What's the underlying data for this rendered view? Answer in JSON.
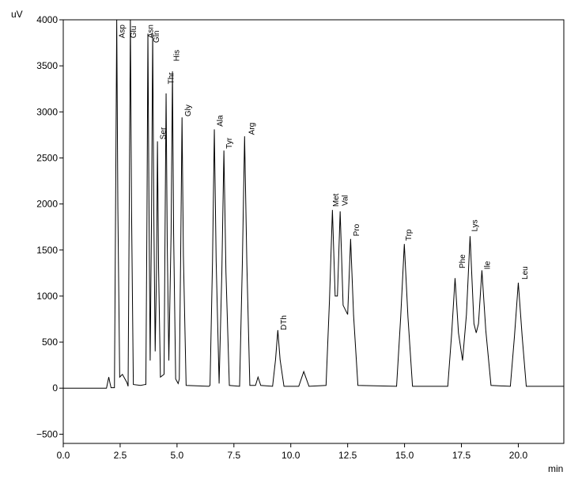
{
  "chart_data": {
    "type": "line",
    "y_label": "uV",
    "x_label": "min",
    "color": "#000000",
    "xlim": [
      0,
      22
    ],
    "ylim": [
      -600,
      4000
    ],
    "xticks": [
      {
        "value": 0,
        "label": "0.0"
      },
      {
        "value": 2.5,
        "label": "2.5"
      },
      {
        "value": 5,
        "label": "5.0"
      },
      {
        "value": 7.5,
        "label": "7.5"
      },
      {
        "value": 10,
        "label": "10.0"
      },
      {
        "value": 12.5,
        "label": "12.5"
      },
      {
        "value": 15,
        "label": "15.0"
      },
      {
        "value": 17.5,
        "label": "17.5"
      },
      {
        "value": 20,
        "label": "20.0"
      }
    ],
    "yticks": [
      {
        "value": -500,
        "label": "−500"
      },
      0,
      500,
      1000,
      1500,
      2000,
      2500,
      3000,
      3500,
      4000
    ],
    "x": [
      0,
      1.9,
      1.95,
      2.0,
      2.05,
      2.1,
      2.25,
      2.3,
      2.35,
      2.4,
      2.48,
      2.6,
      2.8,
      2.85,
      2.9,
      2.95,
      3.0,
      3.08,
      3.4,
      3.6,
      3.63,
      3.68,
      3.72,
      3.77,
      3.82,
      3.88,
      3.93,
      3.98,
      4.04,
      4.1,
      4.14,
      4.19,
      4.27,
      4.43,
      4.47,
      4.52,
      4.57,
      4.64,
      4.74,
      4.8,
      4.85,
      4.94,
      5.05,
      5.1,
      5.16,
      5.22,
      5.28,
      5.4,
      6.4,
      6.45,
      6.56,
      6.64,
      6.72,
      6.85,
      6.97,
      7.06,
      7.15,
      7.3,
      7.75,
      7.87,
      7.97,
      8.07,
      8.2,
      8.45,
      8.56,
      8.68,
      9.2,
      9.33,
      9.43,
      9.53,
      9.7,
      10.35,
      10.57,
      10.8,
      11.55,
      11.7,
      11.83,
      11.95,
      12.05,
      12.17,
      12.3,
      12.5,
      12.63,
      12.76,
      12.95,
      14.65,
      14.83,
      14.99,
      15.15,
      15.35,
      16.9,
      17.07,
      17.22,
      17.37,
      17.55,
      17.72,
      17.88,
      18.05,
      18.15,
      18.25,
      18.4,
      18.57,
      18.8,
      19.65,
      19.83,
      20.0,
      20.17,
      20.35,
      22
    ],
    "values": [
      0,
      0,
      60,
      120,
      60,
      5,
      5,
      1960,
      4000,
      1960,
      120,
      150,
      60,
      20,
      1960,
      4000,
      1960,
      40,
      30,
      40,
      40,
      1890,
      3850,
      1890,
      300,
      1890,
      3850,
      1890,
      400,
      1300,
      2680,
      1300,
      120,
      150,
      1570,
      3200,
      1570,
      300,
      1690,
      3440,
      1690,
      100,
      50,
      100,
      1440,
      2940,
      1440,
      30,
      20,
      30,
      1380,
      2810,
      1380,
      50,
      1260,
      2580,
      1260,
      30,
      20,
      1340,
      2735,
      1340,
      30,
      30,
      120,
      30,
      20,
      310,
      630,
      310,
      20,
      20,
      180,
      20,
      30,
      950,
      1935,
      1000,
      1000,
      1920,
      900,
      800,
      1620,
      790,
      30,
      20,
      770,
      1565,
      770,
      20,
      20,
      590,
      1195,
      600,
      300,
      800,
      1650,
      700,
      600,
      700,
      1280,
      630,
      30,
      20,
      560,
      1145,
      560,
      20,
      20
    ],
    "annotations": [
      {
        "text": "Asp",
        "x": 2.7,
        "y": 3800
      },
      {
        "text": "Glu",
        "x": 3.2,
        "y": 3800
      },
      {
        "text": "Asn",
        "x": 3.95,
        "y": 3800
      },
      {
        "text": "Gln",
        "x": 4.2,
        "y": 3750
      },
      {
        "text": "Ser",
        "x": 4.5,
        "y": 2700
      },
      {
        "text": "Thr",
        "x": 4.85,
        "y": 3300
      },
      {
        "text": "His",
        "x": 5.1,
        "y": 3550
      },
      {
        "text": "Gly",
        "x": 5.6,
        "y": 2950
      },
      {
        "text": "Ala",
        "x": 7.0,
        "y": 2840
      },
      {
        "text": "Tyr",
        "x": 7.4,
        "y": 2600
      },
      {
        "text": "Arg",
        "x": 8.4,
        "y": 2750
      },
      {
        "text": "DTh",
        "x": 9.8,
        "y": 630
      },
      {
        "text": "Met",
        "x": 12.1,
        "y": 1970
      },
      {
        "text": "Val",
        "x": 12.5,
        "y": 1980
      },
      {
        "text": "Pro",
        "x": 13.0,
        "y": 1650
      },
      {
        "text": "Trp",
        "x": 15.3,
        "y": 1600
      },
      {
        "text": "Phe",
        "x": 17.65,
        "y": 1300
      },
      {
        "text": "Lys",
        "x": 18.2,
        "y": 1700
      },
      {
        "text": "Ile",
        "x": 18.75,
        "y": 1290
      },
      {
        "text": "Leu",
        "x": 20.4,
        "y": 1180
      }
    ]
  }
}
